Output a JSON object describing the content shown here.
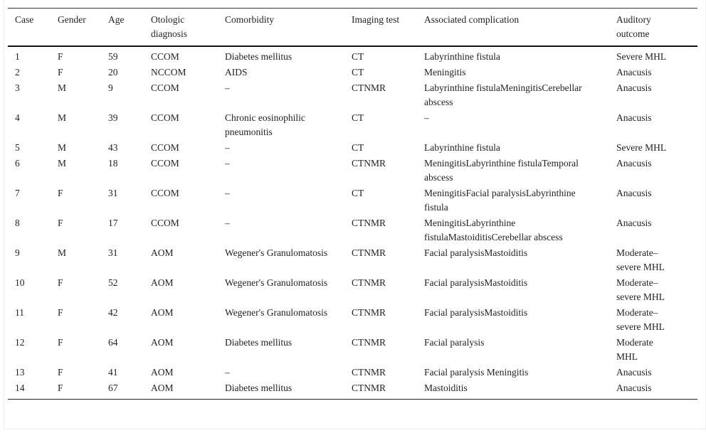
{
  "table": {
    "headers": [
      "Case",
      "Gender",
      "Age",
      "Otologic diagnosis",
      "Comorbidity",
      "Imaging test",
      "Associated complication",
      "Auditory outcome"
    ],
    "rows": [
      [
        "1",
        "F",
        "59",
        "CCOM",
        "Diabetes mellitus",
        "CT",
        "Labyrinthine fistula",
        "Severe MHL"
      ],
      [
        "2",
        "F",
        "20",
        "NCCOM",
        "AIDS",
        "CT",
        "Meningitis",
        "Anacusis"
      ],
      [
        "3",
        "M",
        "9",
        "CCOM",
        "–",
        "CTNMR",
        "Labyrinthine fistulaMeningitisCerebellar abscess",
        "Anacusis"
      ],
      [
        "4",
        "M",
        "39",
        "CCOM",
        "Chronic eosinophilic pneumonitis",
        "CT",
        "–",
        "Anacusis"
      ],
      [
        "5",
        "M",
        "43",
        "CCOM",
        "–",
        "CT",
        "Labyrinthine fistula",
        "Severe MHL"
      ],
      [
        "6",
        "M",
        "18",
        "CCOM",
        "–",
        "CTNMR",
        "MeningitisLabyrinthine fistulaTemporal abscess",
        "Anacusis"
      ],
      [
        "7",
        "F",
        "31",
        "CCOM",
        "–",
        "CT",
        "MeningitisFacial paralysisLabyrinthine fistula",
        "Anacusis"
      ],
      [
        "8",
        "F",
        "17",
        "CCOM",
        "–",
        "CTNMR",
        "MeningitisLabyrinthine fistulaMastoiditisCerebellar abscess",
        "Anacusis"
      ],
      [
        "9",
        "M",
        "31",
        "AOM",
        "Wegener's Granulomatosis",
        "CTNMR",
        "Facial paralysisMastoiditis",
        "Moderate–severe MHL"
      ],
      [
        "10",
        "F",
        "52",
        "AOM",
        "Wegener's Granulomatosis",
        "CTNMR",
        "Facial paralysisMastoiditis",
        "Moderate–severe MHL"
      ],
      [
        "11",
        "F",
        "42",
        "AOM",
        "Wegener's Granulomatosis",
        "CTNMR",
        "Facial paralysisMastoiditis",
        "Moderate–severe MHL"
      ],
      [
        "12",
        "F",
        "64",
        "AOM",
        "Diabetes mellitus",
        "CTNMR",
        "Facial paralysis",
        "Moderate MHL"
      ],
      [
        "13",
        "F",
        "41",
        "AOM",
        "–",
        "CTNMR",
        "Facial paralysis Meningitis",
        "Anacusis"
      ],
      [
        "14",
        "F",
        "67",
        "AOM",
        "Diabetes mellitus",
        "CTNMR",
        "Mastoiditis",
        "Anacusis"
      ]
    ]
  }
}
